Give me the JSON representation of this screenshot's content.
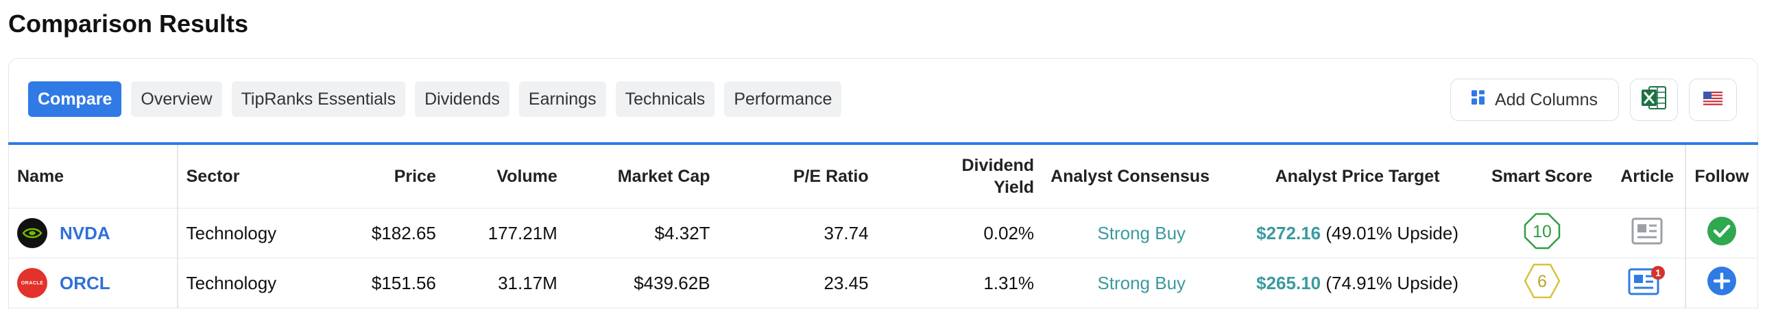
{
  "page": {
    "title": "Comparison Results"
  },
  "tabs": [
    {
      "label": "Compare",
      "active": true
    },
    {
      "label": "Overview",
      "active": false
    },
    {
      "label": "TipRanks Essentials",
      "active": false
    },
    {
      "label": "Dividends",
      "active": false
    },
    {
      "label": "Earnings",
      "active": false
    },
    {
      "label": "Technicals",
      "active": false
    },
    {
      "label": "Performance",
      "active": false
    }
  ],
  "tools": {
    "add_columns_label": "Add Columns",
    "excel_icon": "excel-export-icon",
    "flag_icon": "us-flag-icon"
  },
  "colors": {
    "accent": "#2f7ae5",
    "ticker": "#2f6fdc",
    "consensus": "#3a9a9f",
    "score_green": "#2e9e3e",
    "score_yellow": "#d8c23a",
    "follow_green": "#2fa84f",
    "follow_blue": "#2f7ae5",
    "badge_red": "#d6322d"
  },
  "table": {
    "columns": {
      "name": "Name",
      "sector": "Sector",
      "price": "Price",
      "volume": "Volume",
      "market_cap": "Market Cap",
      "pe_ratio": "P/E Ratio",
      "dividend_yield_1": "Dividend",
      "dividend_yield_2": "Yield",
      "analyst_consensus": "Analyst Consensus",
      "analyst_price_target": "Analyst Price Target",
      "smart_score": "Smart Score",
      "article": "Article",
      "follow": "Follow"
    },
    "rows": [
      {
        "ticker": "NVDA",
        "logo": "nvidia-logo",
        "sector": "Technology",
        "price": "$182.65",
        "volume": "177.21M",
        "market_cap": "$4.32T",
        "pe_ratio": "37.74",
        "dividend_yield": "0.02%",
        "consensus": "Strong Buy",
        "price_target": "$272.16",
        "upside": "(49.01% Upside)",
        "smart_score": "10",
        "article_icon": "article-icon",
        "follow_state": "following"
      },
      {
        "ticker": "ORCL",
        "logo_text": "ORACLE",
        "logo": "oracle-logo",
        "sector": "Technology",
        "price": "$151.56",
        "volume": "31.17M",
        "market_cap": "$439.62B",
        "pe_ratio": "23.45",
        "dividend_yield": "1.31%",
        "consensus": "Strong Buy",
        "price_target": "$265.10",
        "upside": "(74.91% Upside)",
        "smart_score": "6",
        "article_icon": "article-icon",
        "article_badge": "1",
        "follow_state": "not-following"
      }
    ]
  }
}
